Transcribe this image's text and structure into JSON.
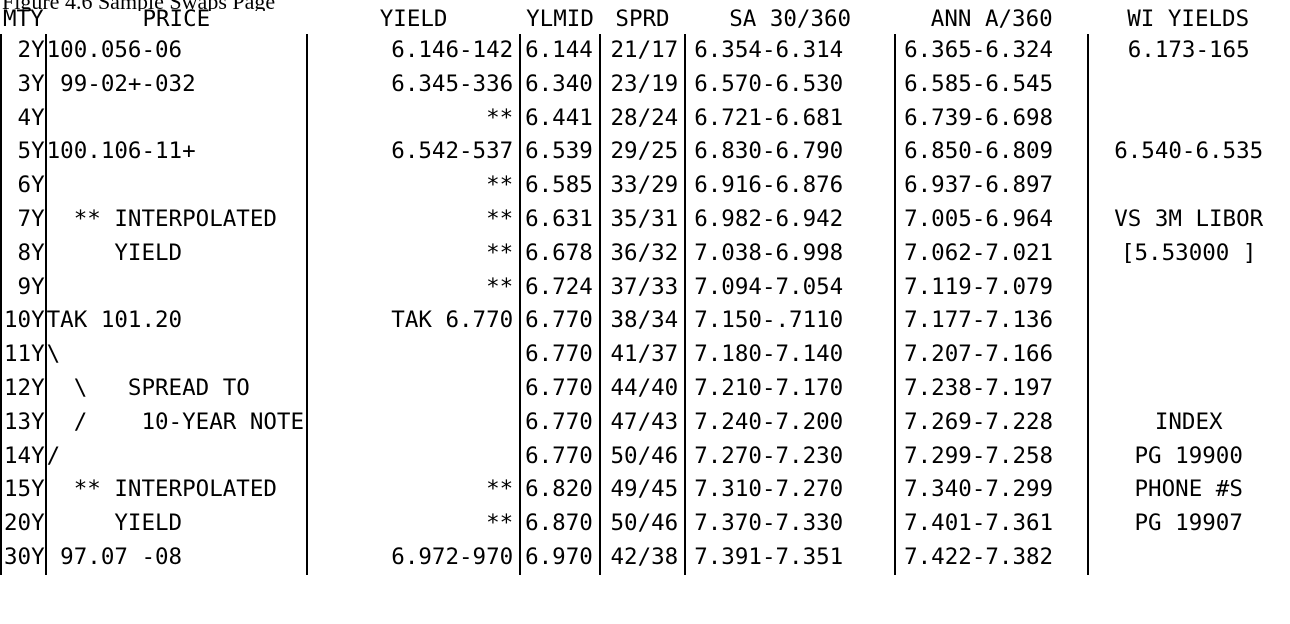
{
  "caption": "Figure 4.6   Sample Swaps Page",
  "headers": {
    "mty": "MTY",
    "price": "PRICE",
    "yield": "YIELD",
    "ylmid": "YLMID",
    "sprd": "SPRD",
    "sa": "SA 30/360",
    "ann": "ANN A/360",
    "wi": "WI YIELDS"
  },
  "rows": [
    {
      "mty": "2Y",
      "price": "100.056-06",
      "yield": "6.146-142",
      "ylmid": "6.144",
      "sprd": "21/17",
      "sa": "6.354-6.314",
      "ann": "6.365-6.324",
      "wi": "6.173-165"
    },
    {
      "mty": "3Y",
      "price": " 99-02+-032",
      "yield": "6.345-336",
      "ylmid": "6.340",
      "sprd": "23/19",
      "sa": "6.570-6.530",
      "ann": "6.585-6.545",
      "wi": ""
    },
    {
      "mty": "4Y",
      "price": "",
      "yield": "**",
      "ylmid": "6.441",
      "sprd": "28/24",
      "sa": "6.721-6.681",
      "ann": "6.739-6.698",
      "wi": ""
    },
    {
      "mty": "5Y",
      "price": "100.106-11+",
      "yield": "6.542-537",
      "ylmid": "6.539",
      "sprd": "29/25",
      "sa": "6.830-6.790",
      "ann": "6.850-6.809",
      "wi": "6.540-6.535"
    },
    {
      "mty": "6Y",
      "price": "",
      "yield": "**",
      "ylmid": "6.585",
      "sprd": "33/29",
      "sa": "6.916-6.876",
      "ann": "6.937-6.897",
      "wi": ""
    },
    {
      "mty": "7Y",
      "price": "  ** INTERPOLATED",
      "yield": "**",
      "ylmid": "6.631",
      "sprd": "35/31",
      "sa": "6.982-6.942",
      "ann": "7.005-6.964",
      "wi": "VS 3M LIBOR"
    },
    {
      "mty": "8Y",
      "price": "     YIELD",
      "yield": "**",
      "ylmid": "6.678",
      "sprd": "36/32",
      "sa": "7.038-6.998",
      "ann": "7.062-7.021",
      "wi": "[5.53000 ]"
    },
    {
      "mty": "9Y",
      "price": "",
      "yield": "**",
      "ylmid": "6.724",
      "sprd": "37/33",
      "sa": "7.094-7.054",
      "ann": "7.119-7.079",
      "wi": ""
    },
    {
      "mty": "10Y",
      "price": "TAK 101.20",
      "yield": "TAK 6.770",
      "ylmid": "6.770",
      "sprd": "38/34",
      "sa": "7.150-.7110",
      "ann": "7.177-7.136",
      "wi": ""
    },
    {
      "mty": "11Y",
      "price": "\\",
      "yield": "",
      "ylmid": "6.770",
      "sprd": "41/37",
      "sa": "7.180-7.140",
      "ann": "7.207-7.166",
      "wi": ""
    },
    {
      "mty": "12Y",
      "price": "  \\   SPREAD TO",
      "yield": "",
      "ylmid": "6.770",
      "sprd": "44/40",
      "sa": "7.210-7.170",
      "ann": "7.238-7.197",
      "wi": ""
    },
    {
      "mty": "13Y",
      "price": "  /    10-YEAR NOTE",
      "yield": "",
      "ylmid": "6.770",
      "sprd": "47/43",
      "sa": "7.240-7.200",
      "ann": "7.269-7.228",
      "wi": "INDEX"
    },
    {
      "mty": "14Y",
      "price": "/",
      "yield": "",
      "ylmid": "6.770",
      "sprd": "50/46",
      "sa": "7.270-7.230",
      "ann": "7.299-7.258",
      "wi": "PG 19900"
    },
    {
      "mty": "15Y",
      "price": "  ** INTERPOLATED",
      "yield": "**",
      "ylmid": "6.820",
      "sprd": "49/45",
      "sa": "7.310-7.270",
      "ann": "7.340-7.299",
      "wi": "PHONE #S"
    },
    {
      "mty": "20Y",
      "price": "     YIELD",
      "yield": "**",
      "ylmid": "6.870",
      "sprd": "50/46",
      "sa": "7.370-7.330",
      "ann": "7.401-7.361",
      "wi": "PG 19907"
    },
    {
      "mty": "30Y",
      "price": " 97.07 -08",
      "yield": "6.972-970",
      "ylmid": "6.970",
      "sprd": "42/38",
      "sa": "7.391-7.351",
      "ann": "7.422-7.382",
      "wi": ""
    }
  ]
}
